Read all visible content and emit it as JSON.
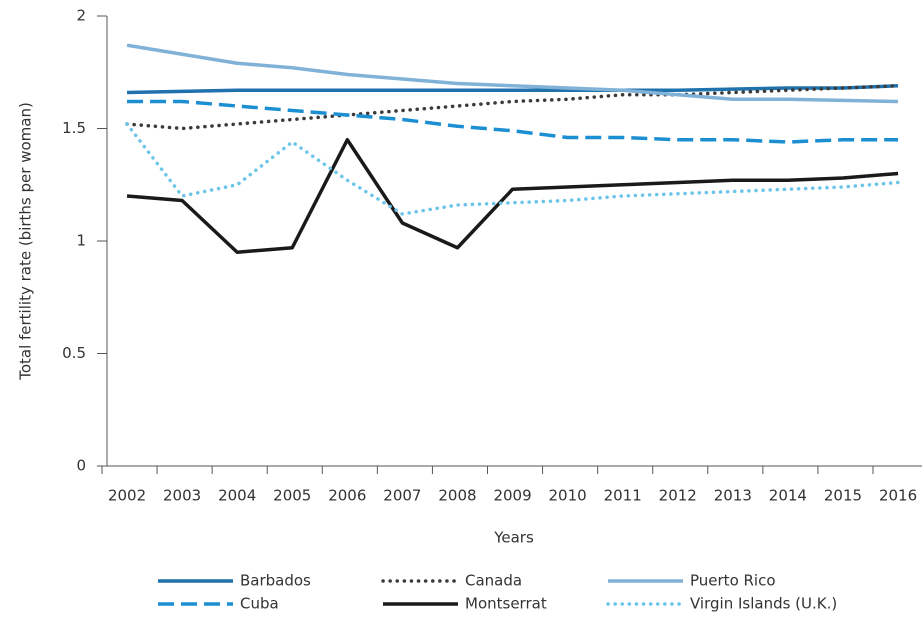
{
  "chart_data": {
    "type": "line",
    "y_label": "Total fertility rate (births per woman)",
    "x_label": "Years",
    "categories": [
      "2002",
      "2003",
      "2004",
      "2005",
      "2006",
      "2007",
      "2008",
      "2009",
      "2010",
      "2011",
      "2012",
      "2013",
      "2014",
      "2015",
      "2016"
    ],
    "ylim": [
      0,
      2
    ],
    "yticks": [
      0,
      0.5,
      1,
      1.5,
      2
    ],
    "grid": false,
    "legend": "bottom",
    "series": [
      {
        "name": "Barbados",
        "color": "#1f72ac",
        "style": "solid",
        "values": [
          1.66,
          1.665,
          1.67,
          1.67,
          1.67,
          1.67,
          1.67,
          1.67,
          1.67,
          1.67,
          1.67,
          1.675,
          1.68,
          1.68,
          1.69
        ]
      },
      {
        "name": "Canada",
        "color": "#3b3b3b",
        "style": "dotted",
        "values": [
          1.52,
          1.5,
          1.52,
          1.54,
          1.56,
          1.58,
          1.6,
          1.62,
          1.63,
          1.65,
          1.65,
          1.66,
          1.67,
          1.68,
          1.69
        ]
      },
      {
        "name": "Puerto Rico",
        "color": "#80b2d8",
        "style": "solid",
        "values": [
          1.87,
          1.83,
          1.79,
          1.77,
          1.74,
          1.72,
          1.7,
          1.69,
          1.68,
          1.67,
          1.65,
          1.63,
          1.63,
          1.625,
          1.62
        ]
      },
      {
        "name": "Cuba",
        "color": "#1b8fd2",
        "style": "dashed",
        "values": [
          1.62,
          1.62,
          1.6,
          1.58,
          1.56,
          1.54,
          1.51,
          1.49,
          1.46,
          1.46,
          1.45,
          1.45,
          1.44,
          1.45,
          1.45
        ]
      },
      {
        "name": "Montserrat",
        "color": "#1a1a1a",
        "style": "solid",
        "values": [
          1.2,
          1.18,
          0.95,
          0.97,
          1.45,
          1.08,
          0.97,
          1.23,
          1.24,
          1.25,
          1.26,
          1.27,
          1.27,
          1.28,
          1.3
        ]
      },
      {
        "name": "Virgin Islands (U.K.)",
        "color": "#6cc5e8",
        "style": "dotted",
        "values": [
          1.52,
          1.2,
          1.25,
          1.44,
          1.27,
          1.12,
          1.16,
          1.17,
          1.18,
          1.2,
          1.21,
          1.22,
          1.23,
          1.24,
          1.26
        ]
      }
    ]
  }
}
